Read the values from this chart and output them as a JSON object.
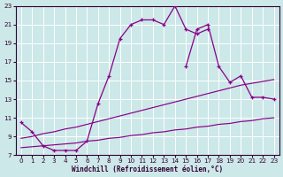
{
  "background_color": "#cce8e8",
  "grid_color": "#b0d8d8",
  "line_color": "#880088",
  "xlim": [
    -0.5,
    23.5
  ],
  "ylim": [
    7,
    23
  ],
  "xticks": [
    0,
    1,
    2,
    3,
    4,
    5,
    6,
    7,
    8,
    9,
    10,
    11,
    12,
    13,
    14,
    15,
    16,
    17,
    18,
    19,
    20,
    21,
    22,
    23
  ],
  "yticks": [
    7,
    9,
    11,
    13,
    15,
    17,
    19,
    21,
    23
  ],
  "xlabel": "Windchill (Refroidissement éolien,°C)",
  "line1_x": [
    0,
    1,
    2,
    3,
    4,
    5,
    6,
    7,
    8,
    9,
    10,
    11,
    12,
    13,
    14,
    15,
    16,
    17
  ],
  "line1_y": [
    10.5,
    9.5,
    8.0,
    7.5,
    7.5,
    7.5,
    8.5,
    12.5,
    15.5,
    19.5,
    21.0,
    21.5,
    21.5,
    21.0,
    23.0,
    20.5,
    20.0,
    20.5
  ],
  "line2_x": [
    15,
    16,
    17,
    18,
    19,
    20,
    21,
    22,
    23
  ],
  "line2_y": [
    16.5,
    20.5,
    21.0,
    16.5,
    14.8,
    15.5,
    13.2,
    13.2,
    13.0
  ],
  "smooth_high_x": [
    0,
    1,
    2,
    3,
    4,
    5,
    6,
    7,
    8,
    9,
    10,
    11,
    12,
    13,
    14,
    15,
    16,
    17,
    18,
    19,
    20,
    21,
    22,
    23
  ],
  "smooth_high_y": [
    8.8,
    9.0,
    9.3,
    9.5,
    9.8,
    10.0,
    10.3,
    10.6,
    10.9,
    11.2,
    11.5,
    11.8,
    12.1,
    12.4,
    12.7,
    13.0,
    13.3,
    13.6,
    13.9,
    14.2,
    14.5,
    14.7,
    14.9,
    15.1
  ],
  "smooth_low_x": [
    0,
    1,
    2,
    3,
    4,
    5,
    6,
    7,
    8,
    9,
    10,
    11,
    12,
    13,
    14,
    15,
    16,
    17,
    18,
    19,
    20,
    21,
    22,
    23
  ],
  "smooth_low_y": [
    7.8,
    7.9,
    8.0,
    8.1,
    8.2,
    8.3,
    8.5,
    8.6,
    8.8,
    8.9,
    9.1,
    9.2,
    9.4,
    9.5,
    9.7,
    9.8,
    10.0,
    10.1,
    10.3,
    10.4,
    10.6,
    10.7,
    10.9,
    11.0
  ]
}
